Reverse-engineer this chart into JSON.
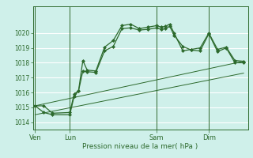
{
  "bg_color": "#cff0ea",
  "grid_color": "#ffffff",
  "line_color": "#2d6a2d",
  "marker_color": "#2d6a2d",
  "xlabel": "Pression niveau de la mer( hPa )",
  "ylim": [
    1013.5,
    1021.8
  ],
  "yticks": [
    1014,
    1015,
    1016,
    1017,
    1018,
    1019,
    1020
  ],
  "day_labels": [
    "Ven",
    "Lun",
    "Sam",
    "Dim"
  ],
  "day_positions": [
    0,
    8,
    28,
    40
  ],
  "xlim": [
    -0.5,
    49
  ],
  "series1_x": [
    0,
    2,
    4,
    8,
    9,
    10,
    11,
    12,
    14,
    16,
    18,
    20,
    22,
    24,
    26,
    28,
    29,
    30,
    31,
    32,
    34,
    36,
    38,
    40,
    42,
    44,
    46,
    48
  ],
  "series1_y": [
    1015.1,
    1015.1,
    1014.6,
    1014.65,
    1015.9,
    1016.1,
    1018.15,
    1017.5,
    1017.45,
    1019.05,
    1019.5,
    1020.5,
    1020.6,
    1020.3,
    1020.4,
    1020.5,
    1020.4,
    1020.45,
    1020.6,
    1020.0,
    1018.8,
    1018.9,
    1019.0,
    1020.0,
    1018.9,
    1019.05,
    1018.15,
    1018.1
  ],
  "series2_x": [
    0,
    2,
    4,
    8,
    9,
    10,
    11,
    12,
    14,
    16,
    18,
    20,
    22,
    24,
    26,
    28,
    29,
    30,
    31,
    32,
    34,
    36,
    38,
    40,
    42,
    44,
    46,
    48
  ],
  "series2_y": [
    1015.1,
    1014.65,
    1014.5,
    1014.5,
    1015.75,
    1016.1,
    1017.45,
    1017.4,
    1017.35,
    1018.8,
    1019.1,
    1020.3,
    1020.35,
    1020.2,
    1020.25,
    1020.35,
    1020.25,
    1020.3,
    1020.45,
    1019.85,
    1019.1,
    1018.85,
    1018.8,
    1019.95,
    1018.75,
    1019.0,
    1018.0,
    1018.0
  ],
  "trend1_x": [
    0,
    48
  ],
  "trend1_y": [
    1015.1,
    1018.1
  ],
  "trend2_x": [
    0,
    48
  ],
  "trend2_y": [
    1014.5,
    1017.3
  ]
}
